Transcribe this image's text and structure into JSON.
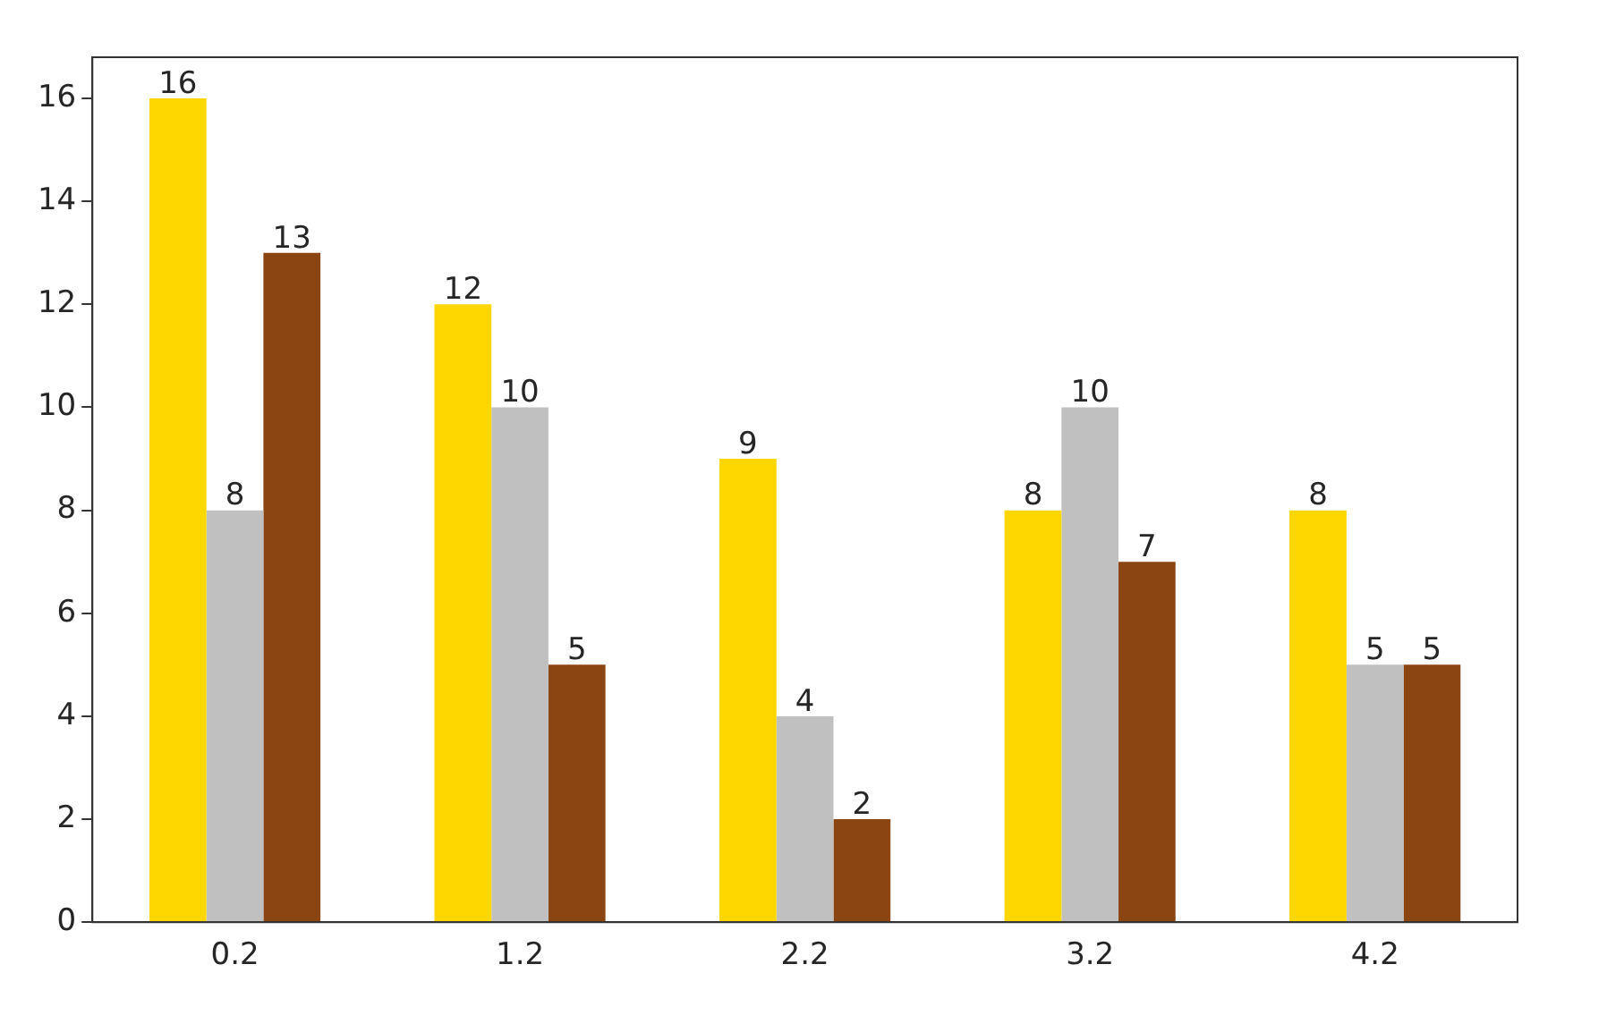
{
  "chart_data": {
    "type": "bar",
    "categories": [
      "0.2",
      "1.2",
      "2.2",
      "3.2",
      "4.2"
    ],
    "series": [
      {
        "color": "#ffd700",
        "values": [
          16,
          12,
          9,
          8,
          8
        ]
      },
      {
        "color": "#c0c0c0",
        "values": [
          8,
          10,
          4,
          10,
          5
        ]
      },
      {
        "color": "#8b4513",
        "values": [
          13,
          5,
          2,
          7,
          5
        ]
      }
    ],
    "ylim": [
      0,
      16.8
    ],
    "yticks": [
      0,
      2,
      4,
      6,
      8,
      10,
      12,
      14,
      16
    ],
    "data_labels": true,
    "grid": false,
    "legend": false
  }
}
